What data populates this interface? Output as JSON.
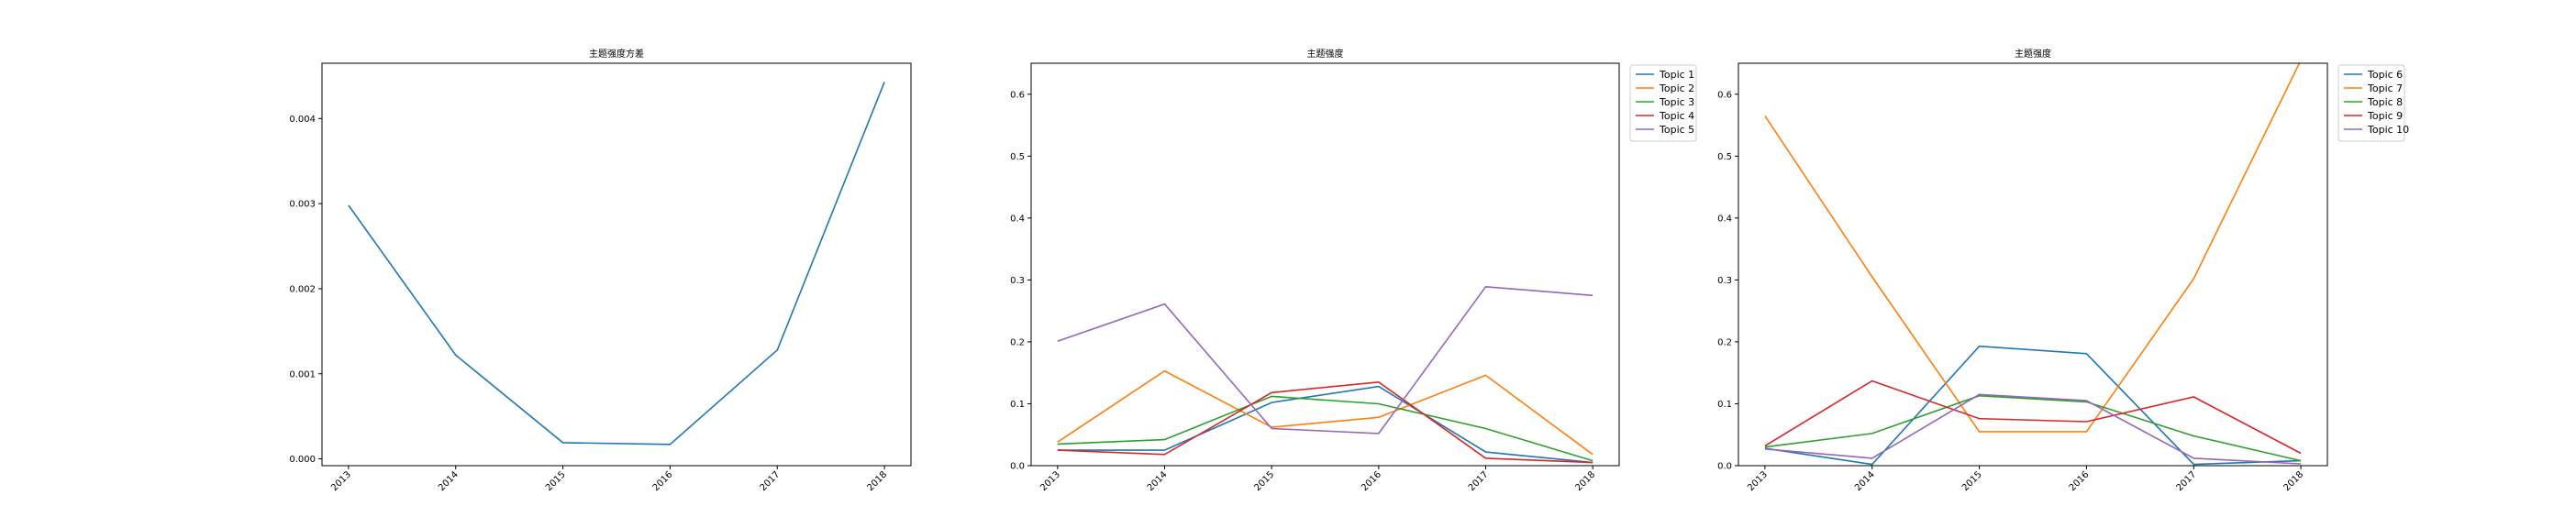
{
  "chart_data": [
    {
      "type": "line",
      "title": "主题强度方差",
      "x": [
        "2013",
        "2014",
        "2015",
        "2016",
        "2017",
        "2018"
      ],
      "ylim": [
        -8e-05,
        0.00465
      ],
      "yticks": [
        "0.000",
        "0.001",
        "0.002",
        "0.003",
        "0.004"
      ],
      "ytick_values": [
        0,
        0.001,
        0.002,
        0.003,
        0.004
      ],
      "grid": false,
      "legend": "none",
      "series": [
        {
          "values": [
            0.00298,
            0.00122,
            0.00019,
            0.00017,
            0.00128,
            0.00443
          ],
          "color": "#1f77b4"
        }
      ]
    },
    {
      "type": "line",
      "title": "主题强度",
      "x": [
        "2013",
        "2014",
        "2015",
        "2016",
        "2017",
        "2018"
      ],
      "ylim": [
        0,
        0.65
      ],
      "yticks": [
        "0.0",
        "0.1",
        "0.2",
        "0.3",
        "0.4",
        "0.5",
        "0.6"
      ],
      "ytick_values": [
        0,
        0.1,
        0.2,
        0.3,
        0.4,
        0.5,
        0.6
      ],
      "grid": false,
      "legend": "outside-top-right",
      "series": [
        {
          "name": "Topic 1",
          "color": "#1f77b4",
          "values": [
            0.025,
            0.025,
            0.102,
            0.128,
            0.022,
            0.005
          ]
        },
        {
          "name": "Topic 2",
          "color": "#ff7f0e",
          "values": [
            0.038,
            0.153,
            0.062,
            0.078,
            0.146,
            0.018
          ]
        },
        {
          "name": "Topic 3",
          "color": "#2ca02c",
          "values": [
            0.035,
            0.042,
            0.112,
            0.1,
            0.06,
            0.008
          ]
        },
        {
          "name": "Topic 4",
          "color": "#d62728",
          "values": [
            0.025,
            0.018,
            0.118,
            0.135,
            0.012,
            0.005
          ]
        },
        {
          "name": "Topic 5",
          "color": "#9467bd",
          "values": [
            0.201,
            0.261,
            0.06,
            0.052,
            0.289,
            0.275
          ]
        }
      ]
    },
    {
      "type": "line",
      "title": "主题强度",
      "x": [
        "2013",
        "2014",
        "2015",
        "2016",
        "2017",
        "2018"
      ],
      "ylim": [
        0,
        0.65
      ],
      "yticks": [
        "0.0",
        "0.1",
        "0.2",
        "0.3",
        "0.4",
        "0.5",
        "0.6"
      ],
      "ytick_values": [
        0,
        0.1,
        0.2,
        0.3,
        0.4,
        0.5,
        0.6
      ],
      "grid": false,
      "legend": "outside-top-right",
      "series": [
        {
          "name": "Topic 6",
          "color": "#1f77b4",
          "values": [
            0.028,
            0.002,
            0.193,
            0.181,
            0.002,
            0.008
          ]
        },
        {
          "name": "Topic 7",
          "color": "#ff7f0e",
          "values": [
            0.565,
            0.305,
            0.055,
            0.055,
            0.302,
            0.655
          ]
        },
        {
          "name": "Topic 8",
          "color": "#2ca02c",
          "values": [
            0.03,
            0.052,
            0.113,
            0.103,
            0.048,
            0.008
          ]
        },
        {
          "name": "Topic 9",
          "color": "#d62728",
          "values": [
            0.032,
            0.137,
            0.076,
            0.071,
            0.111,
            0.02
          ]
        },
        {
          "name": "Topic 10",
          "color": "#9467bd",
          "values": [
            0.027,
            0.012,
            0.115,
            0.105,
            0.012,
            0.003
          ]
        }
      ]
    }
  ]
}
